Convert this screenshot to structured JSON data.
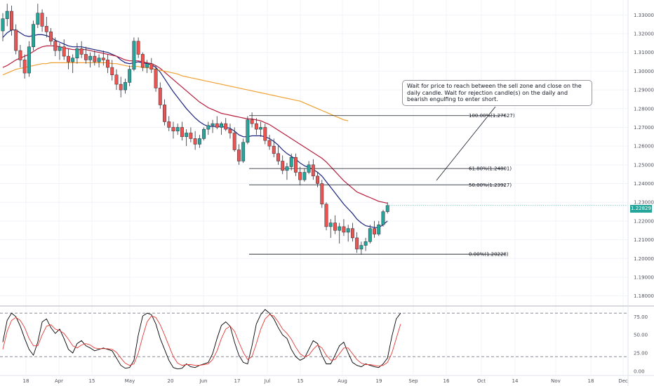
{
  "chart_data": [
    {
      "type": "candlestick",
      "title": "",
      "y_axis": {
        "range": [
          1.175,
          1.338
        ],
        "ticks": [
          "1.33000",
          "1.32000",
          "1.31000",
          "1.30000",
          "1.29000",
          "1.28000",
          "1.27000",
          "1.26000",
          "1.25000",
          "1.24000",
          "1.23000",
          "1.22000",
          "1.21000",
          "1.20000",
          "1.19000",
          "1.18000"
        ]
      },
      "x_axis": {
        "labels": [
          "18",
          "Apr",
          "15",
          "May",
          "20",
          "Jun",
          "17",
          "Jul",
          "15",
          "Aug",
          "19",
          "Sep",
          "16",
          "Oct",
          "14",
          "Nov",
          "18",
          "Dec"
        ]
      },
      "last_price": "1.22829",
      "candles": [
        [
          1.3215,
          1.331,
          1.316,
          1.328
        ],
        [
          1.328,
          1.336,
          1.324,
          1.332
        ],
        [
          1.332,
          1.335,
          1.319,
          1.322
        ],
        [
          1.322,
          1.325,
          1.309,
          1.311
        ],
        [
          1.311,
          1.314,
          1.302,
          1.306
        ],
        [
          1.306,
          1.309,
          1.296,
          1.299
        ],
        [
          1.299,
          1.316,
          1.297,
          1.313
        ],
        [
          1.313,
          1.327,
          1.311,
          1.325
        ],
        [
          1.325,
          1.336,
          1.323,
          1.331
        ],
        [
          1.331,
          1.333,
          1.321,
          1.324
        ],
        [
          1.324,
          1.329,
          1.318,
          1.321
        ],
        [
          1.321,
          1.323,
          1.314,
          1.316
        ],
        [
          1.316,
          1.318,
          1.308,
          1.311
        ],
        [
          1.311,
          1.315,
          1.306,
          1.313
        ],
        [
          1.313,
          1.317,
          1.306,
          1.308
        ],
        [
          1.308,
          1.312,
          1.301,
          1.305
        ],
        [
          1.305,
          1.309,
          1.299,
          1.307
        ],
        [
          1.307,
          1.315,
          1.304,
          1.312
        ],
        [
          1.312,
          1.316,
          1.307,
          1.309
        ],
        [
          1.309,
          1.313,
          1.304,
          1.306
        ],
        [
          1.306,
          1.31,
          1.302,
          1.308
        ],
        [
          1.308,
          1.311,
          1.303,
          1.305
        ],
        [
          1.305,
          1.309,
          1.302,
          1.307
        ],
        [
          1.307,
          1.311,
          1.303,
          1.306
        ],
        [
          1.306,
          1.309,
          1.299,
          1.302
        ],
        [
          1.302,
          1.306,
          1.295,
          1.298
        ],
        [
          1.298,
          1.301,
          1.29,
          1.293
        ],
        [
          1.293,
          1.297,
          1.286,
          1.29
        ],
        [
          1.29,
          1.296,
          1.288,
          1.294
        ],
        [
          1.294,
          1.303,
          1.292,
          1.301
        ],
        [
          1.301,
          1.318,
          1.3,
          1.316
        ],
        [
          1.316,
          1.318,
          1.307,
          1.309
        ],
        [
          1.309,
          1.31,
          1.3,
          1.302
        ],
        [
          1.302,
          1.306,
          1.299,
          1.304
        ],
        [
          1.304,
          1.307,
          1.299,
          1.301
        ],
        [
          1.301,
          1.303,
          1.289,
          1.291
        ],
        [
          1.291,
          1.294,
          1.28,
          1.282
        ],
        [
          1.282,
          1.285,
          1.271,
          1.273
        ],
        [
          1.273,
          1.276,
          1.268,
          1.27
        ],
        [
          1.27,
          1.273,
          1.264,
          1.268
        ],
        [
          1.268,
          1.272,
          1.266,
          1.27
        ],
        [
          1.27,
          1.273,
          1.263,
          1.265
        ],
        [
          1.265,
          1.269,
          1.26,
          1.267
        ],
        [
          1.267,
          1.27,
          1.262,
          1.264
        ],
        [
          1.264,
          1.268,
          1.258,
          1.261
        ],
        [
          1.261,
          1.266,
          1.259,
          1.264
        ],
        [
          1.264,
          1.27,
          1.263,
          1.269
        ],
        [
          1.269,
          1.273,
          1.266,
          1.271
        ],
        [
          1.271,
          1.274,
          1.267,
          1.272
        ],
        [
          1.272,
          1.276,
          1.269,
          1.27
        ],
        [
          1.27,
          1.273,
          1.266,
          1.272
        ],
        [
          1.272,
          1.275,
          1.268,
          1.269
        ],
        [
          1.269,
          1.272,
          1.264,
          1.267
        ],
        [
          1.267,
          1.27,
          1.257,
          1.258
        ],
        [
          1.258,
          1.261,
          1.25,
          1.252
        ],
        [
          1.252,
          1.264,
          1.251,
          1.262
        ],
        [
          1.262,
          1.276,
          1.261,
          1.274
        ],
        [
          1.274,
          1.278,
          1.27,
          1.272
        ],
        [
          1.272,
          1.275,
          1.266,
          1.269
        ],
        [
          1.269,
          1.273,
          1.265,
          1.27
        ],
        [
          1.27,
          1.272,
          1.261,
          1.263
        ],
        [
          1.263,
          1.266,
          1.258,
          1.26
        ],
        [
          1.26,
          1.264,
          1.254,
          1.256
        ],
        [
          1.256,
          1.26,
          1.25,
          1.252
        ],
        [
          1.252,
          1.255,
          1.245,
          1.247
        ],
        [
          1.247,
          1.251,
          1.242,
          1.249
        ],
        [
          1.249,
          1.256,
          1.247,
          1.254
        ],
        [
          1.254,
          1.256,
          1.244,
          1.246
        ],
        [
          1.246,
          1.249,
          1.239,
          1.242
        ],
        [
          1.242,
          1.248,
          1.241,
          1.246
        ],
        [
          1.246,
          1.252,
          1.245,
          1.25
        ],
        [
          1.25,
          1.253,
          1.242,
          1.244
        ],
        [
          1.244,
          1.246,
          1.238,
          1.24
        ],
        [
          1.24,
          1.242,
          1.227,
          1.229
        ],
        [
          1.229,
          1.23,
          1.215,
          1.217
        ],
        [
          1.217,
          1.221,
          1.211,
          1.219
        ],
        [
          1.219,
          1.223,
          1.213,
          1.215
        ],
        [
          1.215,
          1.219,
          1.208,
          1.217
        ],
        [
          1.217,
          1.221,
          1.212,
          1.214
        ],
        [
          1.214,
          1.218,
          1.209,
          1.216
        ],
        [
          1.216,
          1.219,
          1.209,
          1.211
        ],
        [
          1.211,
          1.214,
          1.203,
          1.205
        ],
        [
          1.205,
          1.209,
          1.202,
          1.207
        ],
        [
          1.207,
          1.211,
          1.204,
          1.209
        ],
        [
          1.209,
          1.218,
          1.208,
          1.216
        ],
        [
          1.216,
          1.22,
          1.211,
          1.213
        ],
        [
          1.213,
          1.22,
          1.212,
          1.218
        ],
        [
          1.218,
          1.226,
          1.217,
          1.225
        ],
        [
          1.225,
          1.23,
          1.224,
          1.2283
        ]
      ],
      "moving_averages": [
        {
          "color": "#1a237e",
          "values": [
            1.318,
            1.3205,
            1.322,
            1.322,
            1.3205,
            1.319,
            1.3185,
            1.319,
            1.3195,
            1.3195,
            1.319,
            1.318,
            1.3165,
            1.3155,
            1.3145,
            1.3135,
            1.313,
            1.313,
            1.313,
            1.3125,
            1.312,
            1.3115,
            1.311,
            1.3105,
            1.31,
            1.309,
            1.308,
            1.306,
            1.3045,
            1.304,
            1.3045,
            1.305,
            1.3045,
            1.304,
            1.3035,
            1.302,
            1.2995,
            1.296,
            1.2925,
            1.289,
            1.286,
            1.283,
            1.28,
            1.2775,
            1.275,
            1.273,
            1.2715,
            1.2705,
            1.2705,
            1.2705,
            1.2705,
            1.27,
            1.2695,
            1.268,
            1.266,
            1.265,
            1.265,
            1.2655,
            1.2655,
            1.2655,
            1.265,
            1.264,
            1.2625,
            1.2605,
            1.258,
            1.256,
            1.2545,
            1.253,
            1.251,
            1.2495,
            1.2485,
            1.2475,
            1.246,
            1.244,
            1.241,
            1.238,
            1.235,
            1.232,
            1.229,
            1.2265,
            1.224,
            1.221,
            1.219,
            1.2175,
            1.217,
            1.2165,
            1.2165,
            1.218,
            1.22
          ]
        },
        {
          "color": "#b71c3c",
          "values": [
            1.302,
            1.303,
            1.3045,
            1.306,
            1.307,
            1.308,
            1.309,
            1.3105,
            1.312,
            1.313,
            1.3135,
            1.3135,
            1.3135,
            1.313,
            1.3125,
            1.312,
            1.3115,
            1.3115,
            1.3115,
            1.3115,
            1.311,
            1.3105,
            1.31,
            1.3095,
            1.309,
            1.3085,
            1.308,
            1.307,
            1.306,
            1.3055,
            1.3055,
            1.3055,
            1.305,
            1.3045,
            1.304,
            1.303,
            1.3015,
            1.2995,
            1.2975,
            1.2955,
            1.2935,
            1.2915,
            1.2895,
            1.2875,
            1.2855,
            1.2835,
            1.282,
            1.2805,
            1.2795,
            1.2785,
            1.2775,
            1.277,
            1.2765,
            1.276,
            1.2755,
            1.275,
            1.2745,
            1.2745,
            1.274,
            1.2735,
            1.2725,
            1.2715,
            1.27,
            1.2685,
            1.267,
            1.2655,
            1.264,
            1.2625,
            1.261,
            1.2595,
            1.258,
            1.2565,
            1.255,
            1.2535,
            1.2515,
            1.249,
            1.2465,
            1.244,
            1.2415,
            1.2395,
            1.2375,
            1.2355,
            1.2345,
            1.2335,
            1.2325,
            1.2315,
            1.2305,
            1.23,
            1.2295
          ]
        },
        {
          "color": "#f0a030",
          "values": [
            1.298,
            1.299,
            1.3,
            1.301,
            1.3015,
            1.302,
            1.3025,
            1.303,
            1.3035,
            1.304,
            1.304,
            1.3045,
            1.3045,
            1.3045,
            1.3045,
            1.3045,
            1.3045,
            1.3045,
            1.3045,
            1.3045,
            1.3045,
            1.3045,
            1.3045,
            1.3045,
            1.3045,
            1.304,
            1.304,
            1.3035,
            1.303,
            1.3025,
            1.3025,
            1.3025,
            1.302,
            1.302,
            1.3015,
            1.301,
            1.3005,
            1.3,
            1.2995,
            1.299,
            1.2985,
            1.2975,
            1.297,
            1.2965,
            1.296,
            1.2955,
            1.295,
            1.2945,
            1.294,
            1.2935,
            1.293,
            1.2925,
            1.292,
            1.2915,
            1.291,
            1.2905,
            1.29,
            1.2895,
            1.289,
            1.2885,
            1.288,
            1.2875,
            1.287,
            1.2865,
            1.286,
            1.2855,
            1.285,
            1.2845,
            1.284,
            1.283,
            1.282,
            1.281,
            1.28,
            1.279,
            1.278,
            1.277,
            1.276,
            1.275,
            1.274,
            1.2735
          ]
        }
      ],
      "fibonacci": [
        {
          "label": "100.00%(1.27627)",
          "value": 1.27627
        },
        {
          "label": "61.80%(1.24801)",
          "value": 1.24801
        },
        {
          "label": "50.00%(1.23927)",
          "value": 1.23927
        },
        {
          "label": "0.00%(1.20228)",
          "value": 1.20228
        }
      ],
      "annotation": "Wait for price to reach between the sell zone and close on the daily candle. Wait for rejection candle(s) on the daily and bearish engulfing to enter short."
    },
    {
      "type": "line",
      "y_axis": {
        "range": [
          -5,
          85
        ],
        "ticks": [
          "75.00",
          "50.00",
          "25.00",
          "0.00"
        ]
      },
      "levels": [
        80,
        20
      ],
      "series": [
        {
          "color": "#000000",
          "values": [
            40,
            70,
            80,
            75,
            62,
            45,
            30,
            22,
            40,
            68,
            72,
            60,
            52,
            58,
            45,
            30,
            25,
            38,
            42,
            35,
            32,
            28,
            30,
            32,
            30,
            28,
            18,
            8,
            4,
            5,
            15,
            50,
            76,
            80,
            78,
            65,
            45,
            30,
            15,
            5,
            3,
            4,
            10,
            6,
            5,
            8,
            10,
            12,
            24,
            45,
            63,
            68,
            62,
            40,
            22,
            12,
            10,
            35,
            65,
            78,
            85,
            80,
            72,
            60,
            50,
            45,
            30,
            20,
            15,
            18,
            30,
            42,
            38,
            22,
            10,
            10,
            22,
            35,
            40,
            25,
            12,
            8,
            6,
            10,
            8,
            6,
            5,
            10,
            18,
            48,
            72,
            80
          ]
        },
        {
          "color": "#e53935",
          "values": [
            30,
            55,
            70,
            74,
            70,
            60,
            45,
            35,
            35,
            50,
            62,
            64,
            58,
            56,
            52,
            44,
            35,
            32,
            36,
            38,
            36,
            32,
            31,
            31,
            31,
            30,
            26,
            18,
            11,
            8,
            10,
            25,
            48,
            68,
            76,
            74,
            64,
            50,
            35,
            20,
            11,
            8,
            9,
            9,
            8,
            8,
            9,
            10,
            16,
            28,
            45,
            58,
            62,
            55,
            40,
            26,
            16,
            20,
            38,
            58,
            72,
            78,
            76,
            68,
            58,
            52,
            44,
            33,
            24,
            20,
            22,
            30,
            36,
            32,
            22,
            15,
            16,
            24,
            32,
            32,
            24,
            16,
            11,
            9,
            9,
            8,
            7,
            8,
            12,
            25,
            45,
            65
          ]
        }
      ]
    }
  ]
}
